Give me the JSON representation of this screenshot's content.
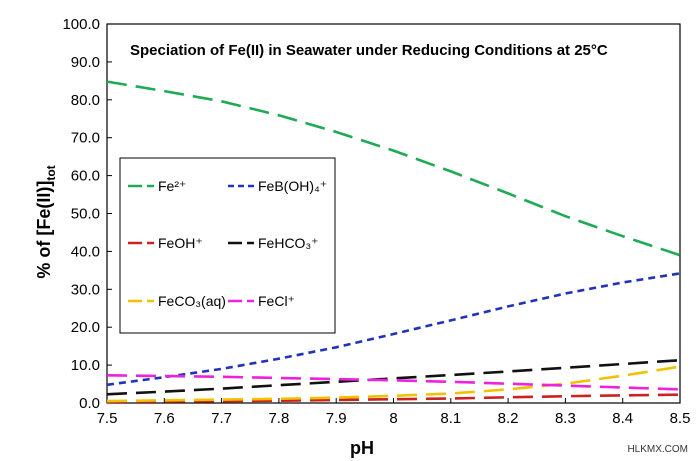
{
  "chart_data": {
    "type": "line",
    "title": "Speciation of Fe(II) in Seawater under Reducing Conditions at 25°C",
    "xlabel": "pH",
    "ylabel_main": "% of [Fe(II)]",
    "ylabel_sub": "tot",
    "xlim": [
      7.5,
      8.5
    ],
    "ylim": [
      0,
      100
    ],
    "x_ticks": [
      "7.5",
      "7.6",
      "7.7",
      "7.8",
      "7.9",
      "8",
      "8.1",
      "8.2",
      "8.3",
      "8.4",
      "8.5"
    ],
    "y_ticks": [
      "0.0",
      "10.0",
      "20.0",
      "30.0",
      "40.0",
      "50.0",
      "60.0",
      "70.0",
      "80.0",
      "90.0",
      "100.0"
    ],
    "grid": false,
    "legend_position": "left-middle",
    "x": [
      7.5,
      7.6,
      7.7,
      7.8,
      7.9,
      8.0,
      8.1,
      8.2,
      8.3,
      8.4,
      8.5
    ],
    "series": [
      {
        "name": "Fe²⁺",
        "color": "#1faa55",
        "dash": "long",
        "values": [
          84.8,
          82.3,
          79.6,
          75.9,
          71.5,
          66.6,
          61.1,
          55.3,
          49.3,
          44.0,
          39.0
        ]
      },
      {
        "name": "FeB(OH)₄⁺",
        "color": "#2233bb",
        "dash": "short",
        "values": [
          4.8,
          6.8,
          9.0,
          11.7,
          14.7,
          18.2,
          21.8,
          25.5,
          28.9,
          31.8,
          34.2
        ]
      },
      {
        "name": "FeOH⁺",
        "color": "#cc2222",
        "dash": "long",
        "values": [
          0.3,
          0.4,
          0.5,
          0.6,
          0.8,
          1.0,
          1.2,
          1.5,
          1.8,
          2.0,
          2.2
        ]
      },
      {
        "name": "FeHCO₃⁺",
        "color": "#111111",
        "dash": "long",
        "values": [
          2.3,
          3.0,
          3.8,
          4.7,
          5.6,
          6.5,
          7.4,
          8.3,
          9.3,
          10.3,
          11.3
        ]
      },
      {
        "name": "FeCO₃(aq)",
        "color": "#f2c200",
        "dash": "long",
        "values": [
          0.5,
          0.7,
          0.9,
          1.1,
          1.4,
          1.9,
          2.5,
          3.6,
          5.1,
          7.2,
          9.6
        ]
      },
      {
        "name": "FeCl⁺",
        "color": "#ee22dd",
        "dash": "long",
        "values": [
          7.3,
          7.1,
          6.9,
          6.6,
          6.3,
          6.0,
          5.6,
          5.1,
          4.6,
          4.1,
          3.6
        ]
      }
    ]
  },
  "watermark": "HLKMX.COM"
}
